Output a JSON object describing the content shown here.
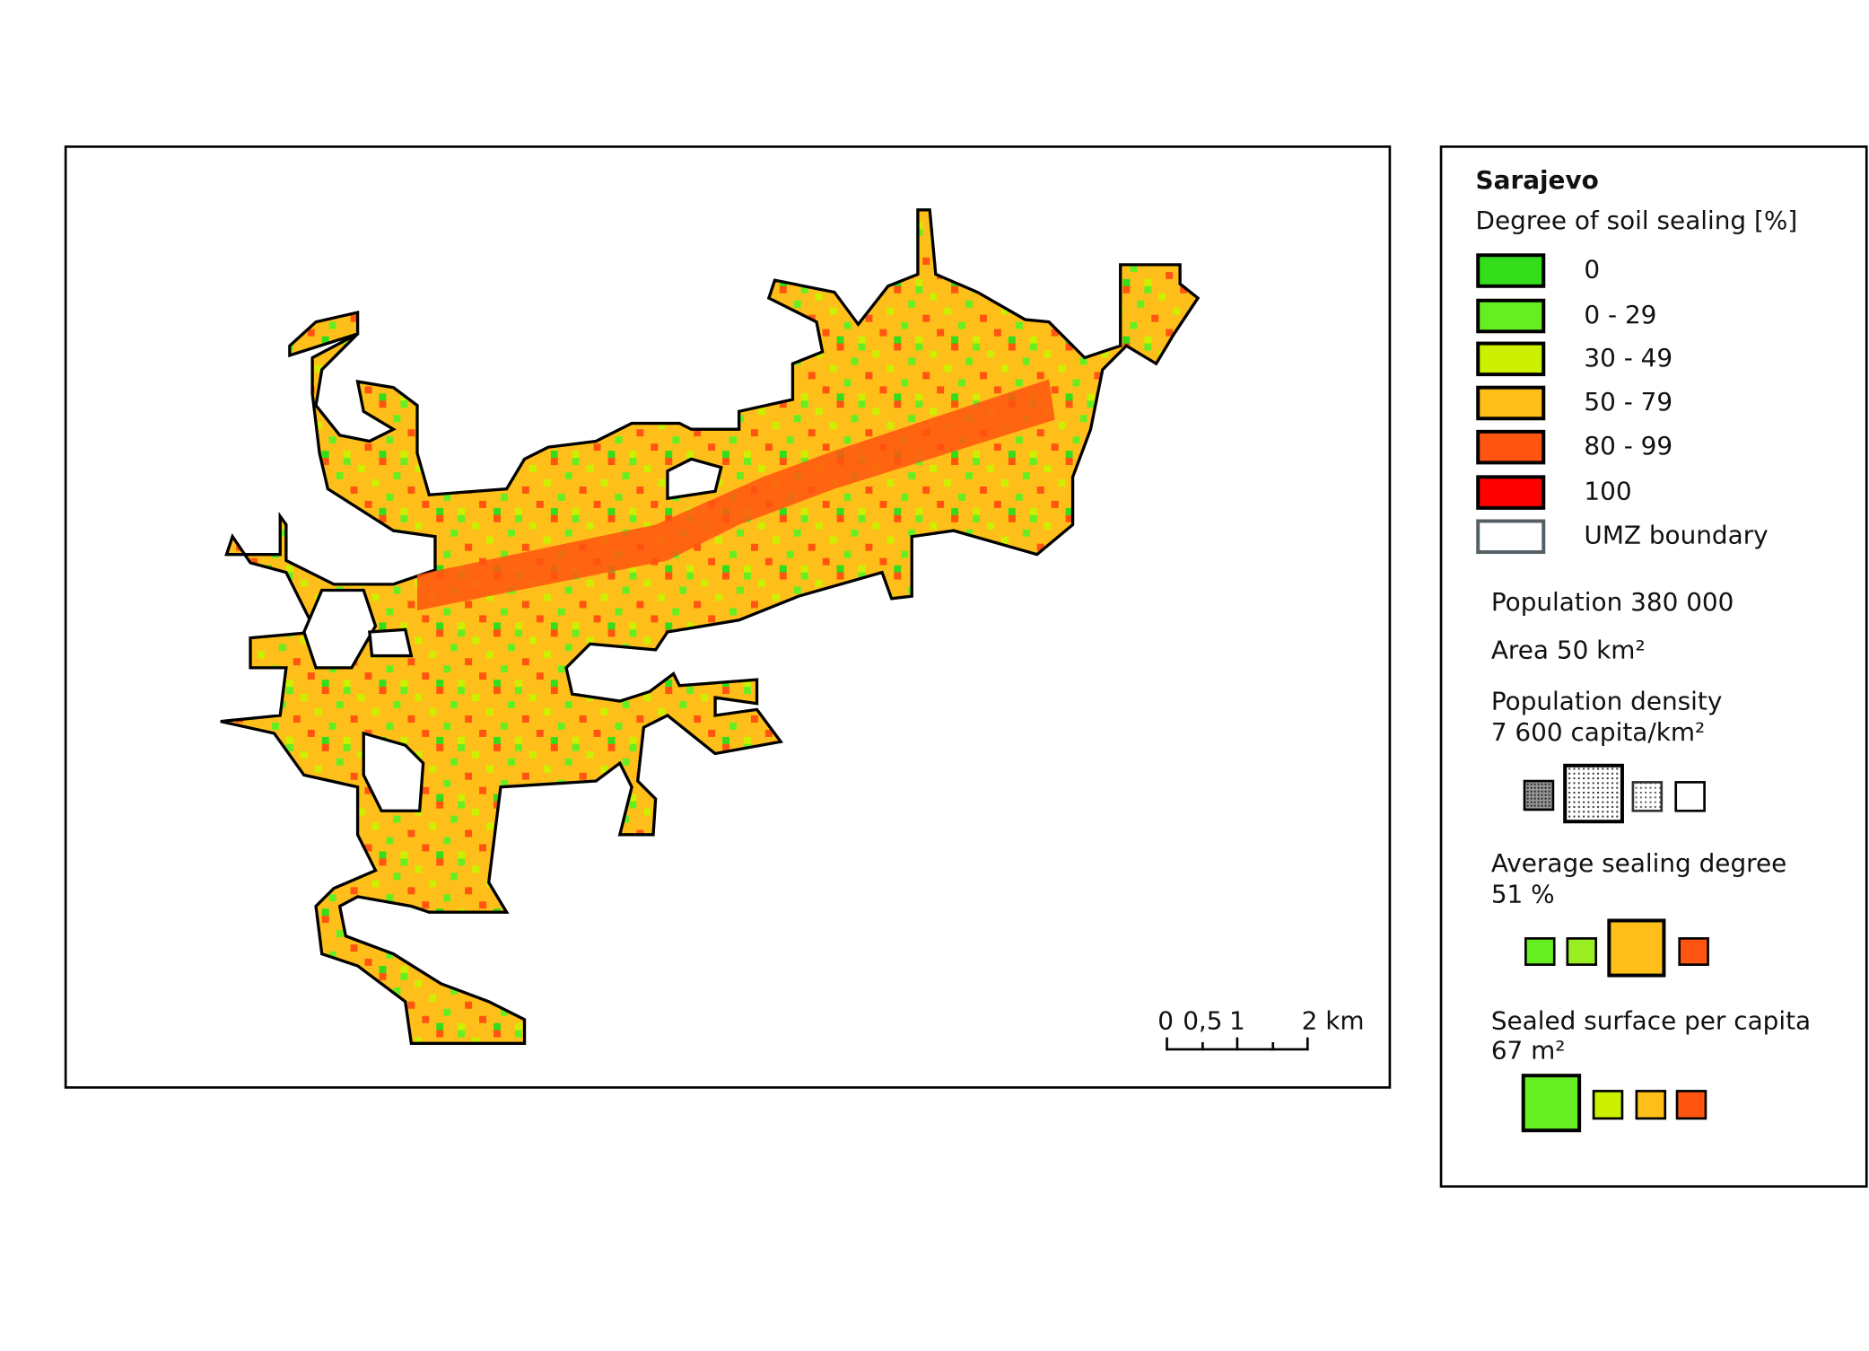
{
  "title": "Sarajevo",
  "subtitle": "Degree of soil sealing [%]",
  "legend": [
    {
      "label": "0",
      "color": "#33dd1a"
    },
    {
      "label": "0 - 29",
      "color": "#66ee22"
    },
    {
      "label": "30 - 49",
      "color": "#ccf000"
    },
    {
      "label": "50 - 79",
      "color": "#ffbf1a"
    },
    {
      "label": "80 - 99",
      "color": "#ff5511"
    },
    {
      "label": "100",
      "color": "#ff0000"
    },
    {
      "label": "UMZ boundary",
      "color": "#ffffff"
    }
  ],
  "stats": {
    "population": "Population 380 000",
    "area": "Area 50 km²",
    "density_title": "Population density",
    "density_value": "7 600 capita/km²",
    "sealing_title": "Average sealing degree",
    "sealing_value": "51 %",
    "sealed_title": "Sealed surface per capita",
    "sealed_value": "67 m²"
  },
  "scale_bar": [
    "0",
    "0,5",
    "1",
    "2 km"
  ]
}
